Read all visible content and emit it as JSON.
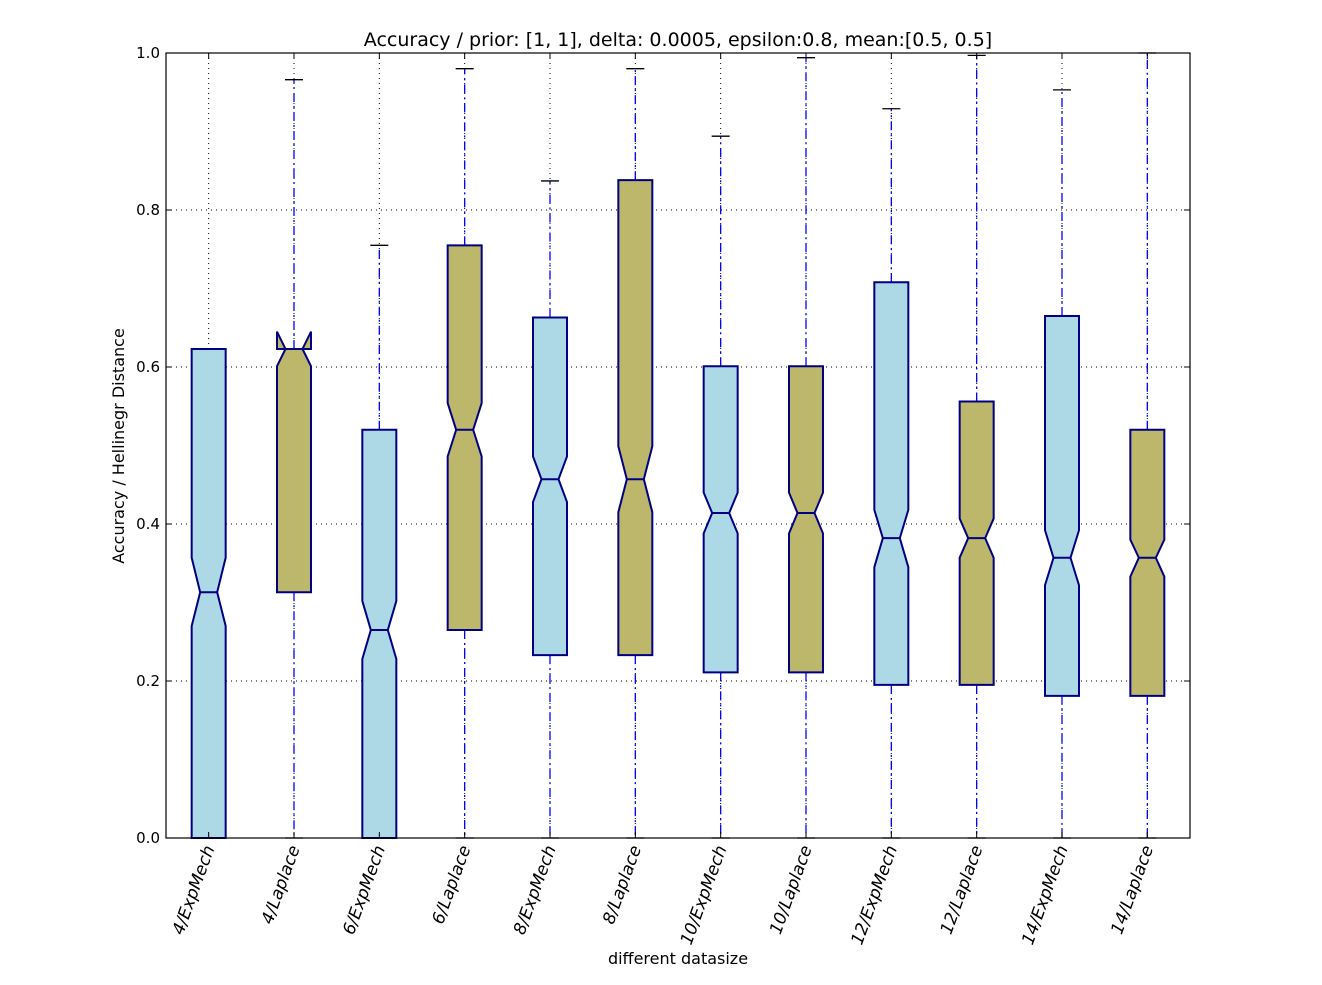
{
  "chart_data": {
    "type": "box",
    "title": "Accuracy / prior: [1, 1], delta: 0.0005, epsilon:0.8, mean:[0.5, 0.5]",
    "xlabel": "different datasize",
    "ylabel": "Accuracy / Hellinegr Distance",
    "ylim": [
      0.0,
      1.0
    ],
    "yticks": [
      "0.0",
      "0.2",
      "0.4",
      "0.6",
      "0.8",
      "1.0"
    ],
    "grid": true,
    "notched": true,
    "colors": {
      "ExpMech": "#add8e6",
      "Laplace": "#bdb76b",
      "box_edge": "#000080",
      "whisker": "#0000ff"
    },
    "categories": [
      "4/ExpMech",
      "4/Laplace",
      "6/ExpMech",
      "6/Laplace",
      "8/ExpMech",
      "8/Laplace",
      "10/ExpMech",
      "10/Laplace",
      "12/ExpMech",
      "12/Laplace",
      "14/ExpMech",
      "14/Laplace"
    ],
    "boxes": [
      {
        "label": "4/ExpMech",
        "whislo": 0.0,
        "q1": 0.0,
        "med": 0.313,
        "q3": 0.623,
        "whishi": 0.623,
        "notch_lo": 0.27,
        "notch_hi": 0.357,
        "fill": "#add8e6"
      },
      {
        "label": "4/Laplace",
        "whislo": 0.0,
        "q1": 0.313,
        "med": 0.623,
        "q3": 0.623,
        "whishi": 0.966,
        "notch_lo": 0.601,
        "notch_hi": 0.645,
        "fill": "#bdb76b"
      },
      {
        "label": "6/ExpMech",
        "whislo": 0.0,
        "q1": 0.0,
        "med": 0.265,
        "q3": 0.52,
        "whishi": 0.755,
        "notch_lo": 0.228,
        "notch_hi": 0.302,
        "fill": "#add8e6"
      },
      {
        "label": "6/Laplace",
        "whislo": 0.0,
        "q1": 0.265,
        "med": 0.52,
        "q3": 0.755,
        "whishi": 0.98,
        "notch_lo": 0.486,
        "notch_hi": 0.554,
        "fill": "#bdb76b"
      },
      {
        "label": "8/ExpMech",
        "whislo": 0.0,
        "q1": 0.233,
        "med": 0.457,
        "q3": 0.663,
        "whishi": 0.837,
        "notch_lo": 0.428,
        "notch_hi": 0.486,
        "fill": "#add8e6"
      },
      {
        "label": "8/Laplace",
        "whislo": 0.0,
        "q1": 0.233,
        "med": 0.457,
        "q3": 0.838,
        "whishi": 0.98,
        "notch_lo": 0.415,
        "notch_hi": 0.499,
        "fill": "#bdb76b"
      },
      {
        "label": "10/ExpMech",
        "whislo": 0.0,
        "q1": 0.211,
        "med": 0.414,
        "q3": 0.601,
        "whishi": 0.894,
        "notch_lo": 0.388,
        "notch_hi": 0.44,
        "fill": "#add8e6"
      },
      {
        "label": "10/Laplace",
        "whislo": 0.0,
        "q1": 0.211,
        "med": 0.414,
        "q3": 0.601,
        "whishi": 0.994,
        "notch_lo": 0.388,
        "notch_hi": 0.44,
        "fill": "#bdb76b"
      },
      {
        "label": "12/ExpMech",
        "whislo": 0.0,
        "q1": 0.195,
        "med": 0.382,
        "q3": 0.708,
        "whishi": 0.929,
        "notch_lo": 0.345,
        "notch_hi": 0.418,
        "fill": "#add8e6"
      },
      {
        "label": "12/Laplace",
        "whislo": 0.0,
        "q1": 0.195,
        "med": 0.382,
        "q3": 0.556,
        "whishi": 0.997,
        "notch_lo": 0.357,
        "notch_hi": 0.407,
        "fill": "#bdb76b"
      },
      {
        "label": "14/ExpMech",
        "whislo": 0.0,
        "q1": 0.181,
        "med": 0.357,
        "q3": 0.665,
        "whishi": 0.953,
        "notch_lo": 0.322,
        "notch_hi": 0.392,
        "fill": "#add8e6"
      },
      {
        "label": "14/Laplace",
        "whislo": 0.0,
        "q1": 0.181,
        "med": 0.357,
        "q3": 0.52,
        "whishi": 1.0,
        "notch_lo": 0.333,
        "notch_hi": 0.38,
        "fill": "#bdb76b"
      }
    ]
  }
}
